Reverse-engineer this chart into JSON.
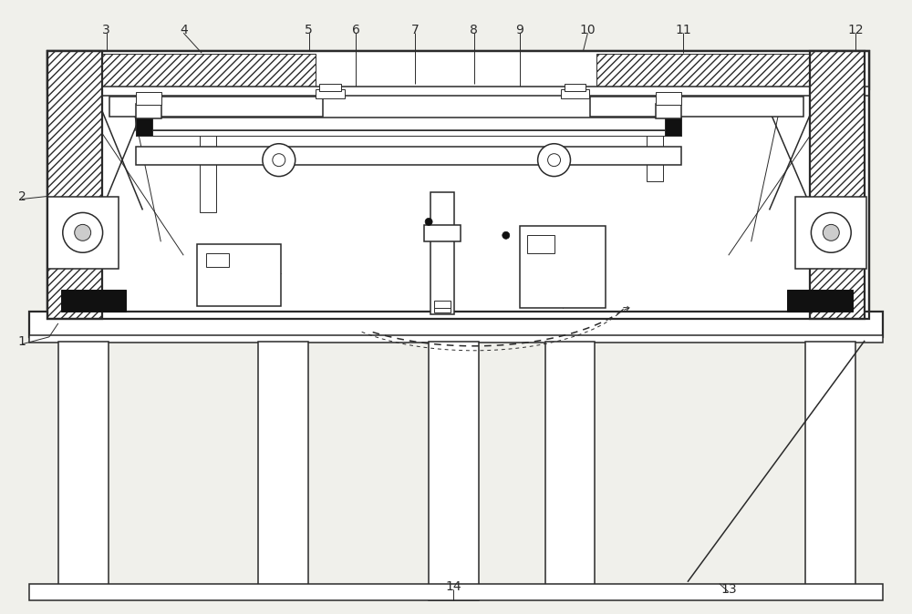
{
  "bg_color": "#f0f0eb",
  "line_color": "#2a2a2a",
  "fig_width": 10.0,
  "fig_height": 6.74,
  "lw_thick": 1.6,
  "lw_med": 1.1,
  "lw_thin": 0.7
}
